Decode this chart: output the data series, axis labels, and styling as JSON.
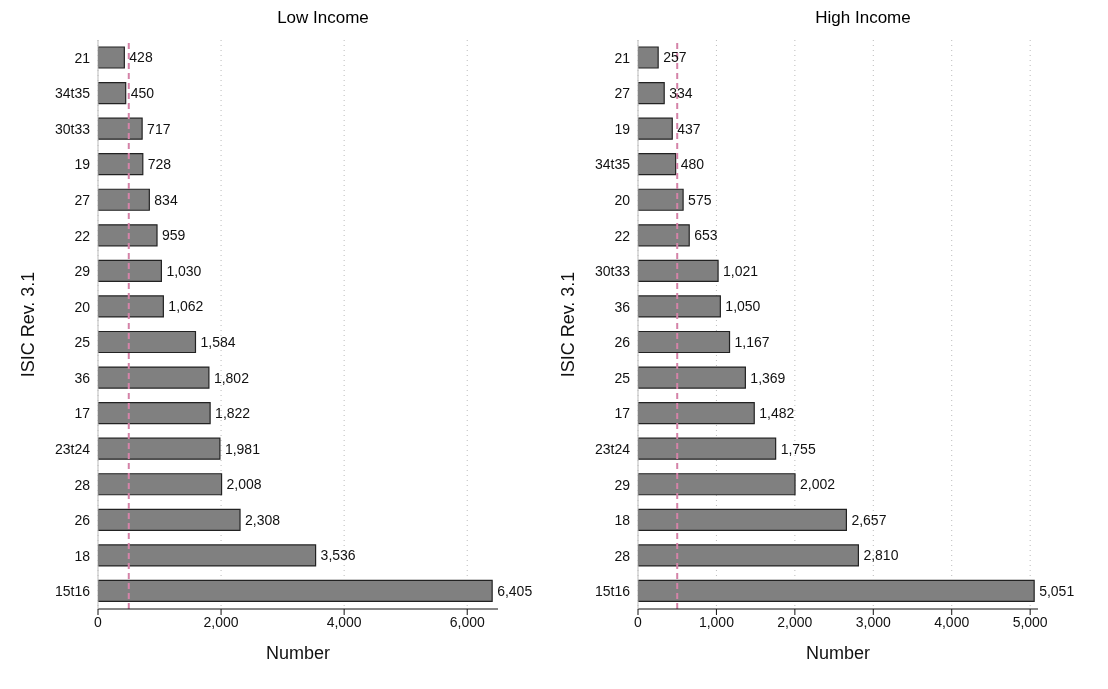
{
  "chart_data": [
    {
      "type": "bar",
      "orientation": "horizontal",
      "title": "Low Income",
      "xlabel": "Number",
      "ylabel": "ISIC Rev. 3.1",
      "categories": [
        "21",
        "34t35",
        "30t33",
        "19",
        "27",
        "22",
        "29",
        "20",
        "25",
        "36",
        "17",
        "23t24",
        "28",
        "26",
        "18",
        "15t16"
      ],
      "values": [
        428,
        450,
        717,
        728,
        834,
        959,
        1030,
        1062,
        1584,
        1802,
        1822,
        1981,
        2008,
        2308,
        3536,
        6405
      ],
      "value_labels": [
        "428",
        "450",
        "717",
        "728",
        "834",
        "959",
        "1,030",
        "1,062",
        "1,584",
        "1,802",
        "1,822",
        "1,981",
        "2,008",
        "2,308",
        "3,536",
        "6,405"
      ],
      "color": "#808080",
      "xlim": [
        0,
        6500
      ],
      "xticks": [
        {
          "value": 0,
          "label": "0"
        },
        {
          "value": 2000,
          "label": "2,000"
        },
        {
          "value": 4000,
          "label": "4,000"
        },
        {
          "value": 6000,
          "label": "6,000"
        }
      ],
      "grid": "x",
      "ref_lines": [
        {
          "axis": "x",
          "value": 500,
          "color": "#d483a8",
          "line_style": "dashed"
        }
      ]
    },
    {
      "type": "bar",
      "orientation": "horizontal",
      "title": "High Income",
      "xlabel": "Number",
      "ylabel": "ISIC Rev. 3.1",
      "categories": [
        "21",
        "27",
        "19",
        "34t35",
        "20",
        "22",
        "30t33",
        "36",
        "26",
        "25",
        "17",
        "23t24",
        "29",
        "18",
        "28",
        "15t16"
      ],
      "values": [
        257,
        334,
        437,
        480,
        575,
        653,
        1021,
        1050,
        1167,
        1369,
        1482,
        1755,
        2002,
        2657,
        2810,
        5051
      ],
      "value_labels": [
        "257",
        "334",
        "437",
        "480",
        "575",
        "653",
        "1,021",
        "1,050",
        "1,167",
        "1,369",
        "1,482",
        "1,755",
        "2,002",
        "2,657",
        "2,810",
        "5,051"
      ],
      "color": "#808080",
      "xlim": [
        0,
        5100
      ],
      "xticks": [
        {
          "value": 0,
          "label": "0"
        },
        {
          "value": 1000,
          "label": "1,000"
        },
        {
          "value": 2000,
          "label": "2,000"
        },
        {
          "value": 3000,
          "label": "3,000"
        },
        {
          "value": 4000,
          "label": "4,000"
        },
        {
          "value": 5000,
          "label": "5,000"
        }
      ],
      "grid": "x",
      "ref_lines": [
        {
          "axis": "x",
          "value": 500,
          "color": "#d483a8",
          "line_style": "dashed"
        }
      ]
    }
  ]
}
